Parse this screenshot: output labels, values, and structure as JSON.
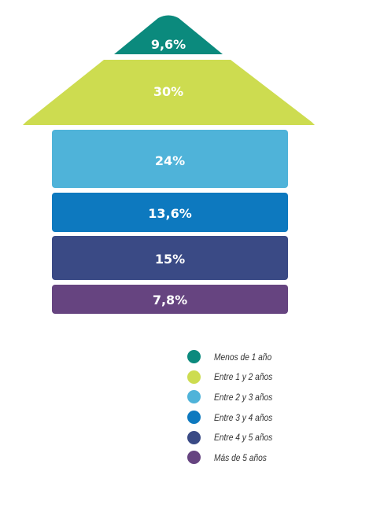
{
  "chart_data": {
    "type": "bar",
    "style": "stacked house (roof and floors)",
    "categories": [
      "Menos de 1 año",
      "Entre 1 y 2 años",
      "Entre 2 y 3 años",
      "Entre 3 y 4 años",
      "Entre 4 y 5 años",
      "Más de 5 años"
    ],
    "values": [
      9.6,
      30,
      24,
      13.6,
      15,
      7.8
    ],
    "value_labels": [
      "9,6%",
      "30%",
      "24%",
      "13,6%",
      "15%",
      "7,8%"
    ],
    "colors": [
      "#0b8a7d",
      "#cddc50",
      "#4fb3d9",
      "#0d79bf",
      "#3a4a85",
      "#664480"
    ],
    "legend": {
      "placement": "bottom-right",
      "items": [
        {
          "label": "Menos de 1 año",
          "color": "#0b8a7d"
        },
        {
          "label": "Entre 1 y 2 años",
          "color": "#cddc50"
        },
        {
          "label": "Entre 2 y 3 años",
          "color": "#4fb3d9"
        },
        {
          "label": "Entre 3 y 4 años",
          "color": "#0d79bf"
        },
        {
          "label": "Entre 4 y 5 años",
          "color": "#3a4a85"
        },
        {
          "label": "Más de 5 años",
          "color": "#664480"
        }
      ]
    }
  }
}
